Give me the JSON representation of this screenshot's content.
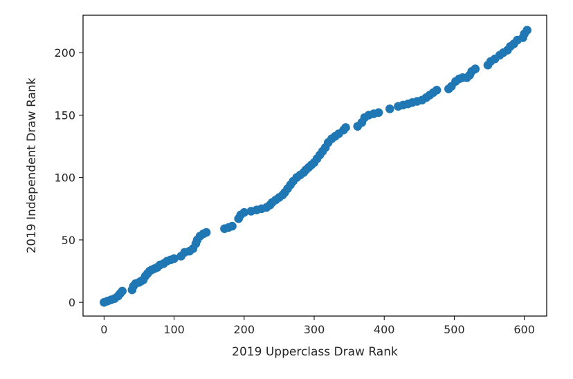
{
  "chart_data": {
    "type": "scatter",
    "xlabel": "2019 Upperclass Draw Rank",
    "ylabel": "2019 Independent Draw Rank",
    "xlim": [
      -30,
      632
    ],
    "ylim": [
      -11,
      230
    ],
    "xticks": [
      0,
      100,
      200,
      300,
      400,
      500,
      600
    ],
    "yticks": [
      0,
      50,
      100,
      150,
      200
    ],
    "grid": false,
    "marker_color": "#1f77b4",
    "points": [
      [
        0,
        0
      ],
      [
        5,
        1
      ],
      [
        10,
        2
      ],
      [
        15,
        3
      ],
      [
        20,
        5
      ],
      [
        23,
        7
      ],
      [
        26,
        9
      ],
      [
        40,
        10
      ],
      [
        42,
        13
      ],
      [
        45,
        15
      ],
      [
        50,
        16
      ],
      [
        53,
        17
      ],
      [
        56,
        18
      ],
      [
        59,
        21
      ],
      [
        62,
        23
      ],
      [
        65,
        25
      ],
      [
        68,
        26
      ],
      [
        72,
        27
      ],
      [
        76,
        28
      ],
      [
        80,
        30
      ],
      [
        85,
        31
      ],
      [
        90,
        33
      ],
      [
        95,
        34
      ],
      [
        100,
        35
      ],
      [
        110,
        37
      ],
      [
        115,
        40
      ],
      [
        122,
        41
      ],
      [
        127,
        43
      ],
      [
        131,
        47
      ],
      [
        133,
        50
      ],
      [
        137,
        53
      ],
      [
        142,
        55
      ],
      [
        146,
        56
      ],
      [
        172,
        59
      ],
      [
        178,
        60
      ],
      [
        183,
        61
      ],
      [
        192,
        67
      ],
      [
        195,
        70
      ],
      [
        200,
        72
      ],
      [
        210,
        73
      ],
      [
        218,
        74
      ],
      [
        225,
        75
      ],
      [
        232,
        76
      ],
      [
        237,
        78
      ],
      [
        240,
        80
      ],
      [
        245,
        82
      ],
      [
        250,
        84
      ],
      [
        255,
        86
      ],
      [
        258,
        88
      ],
      [
        262,
        91
      ],
      [
        266,
        94
      ],
      [
        270,
        97
      ],
      [
        275,
        100
      ],
      [
        280,
        102
      ],
      [
        285,
        104
      ],
      [
        288,
        106
      ],
      [
        292,
        108
      ],
      [
        296,
        110
      ],
      [
        300,
        112
      ],
      [
        304,
        115
      ],
      [
        308,
        118
      ],
      [
        312,
        121
      ],
      [
        316,
        124
      ],
      [
        320,
        128
      ],
      [
        325,
        131
      ],
      [
        330,
        133
      ],
      [
        335,
        135
      ],
      [
        342,
        138
      ],
      [
        345,
        140
      ],
      [
        362,
        141
      ],
      [
        368,
        144
      ],
      [
        372,
        148
      ],
      [
        378,
        150
      ],
      [
        385,
        151
      ],
      [
        392,
        152
      ],
      [
        408,
        155
      ],
      [
        420,
        157
      ],
      [
        427,
        158
      ],
      [
        434,
        159
      ],
      [
        440,
        160
      ],
      [
        447,
        161
      ],
      [
        454,
        162
      ],
      [
        460,
        164
      ],
      [
        465,
        166
      ],
      [
        470,
        168
      ],
      [
        475,
        170
      ],
      [
        492,
        171
      ],
      [
        496,
        173
      ],
      [
        502,
        177
      ],
      [
        507,
        179
      ],
      [
        512,
        180
      ],
      [
        518,
        180
      ],
      [
        522,
        182
      ],
      [
        525,
        185
      ],
      [
        530,
        187
      ],
      [
        548,
        190
      ],
      [
        552,
        193
      ],
      [
        558,
        195
      ],
      [
        565,
        198
      ],
      [
        570,
        200
      ],
      [
        576,
        202
      ],
      [
        580,
        205
      ],
      [
        585,
        207
      ],
      [
        590,
        210
      ],
      [
        598,
        212
      ],
      [
        600,
        215
      ],
      [
        604,
        218
      ]
    ]
  }
}
